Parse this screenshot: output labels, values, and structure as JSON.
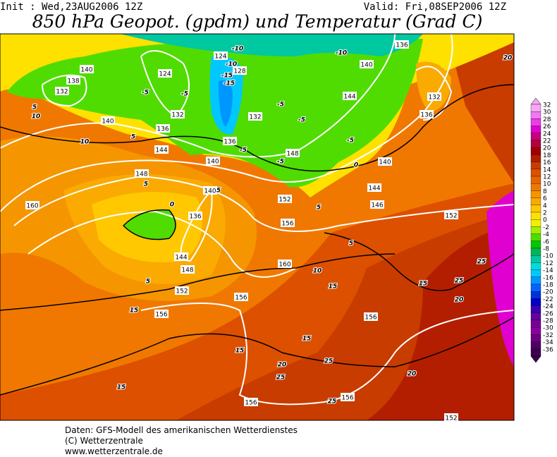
{
  "header": {
    "init": "Init : Wed,23AUG2006 12Z",
    "valid": "Valid: Fri,08SEP2006 12Z",
    "title": "850 hPa Geopot. (gpdm) und Temperatur (Grad C)"
  },
  "colorbar": {
    "ticks": [
      32,
      30,
      28,
      26,
      24,
      22,
      20,
      18,
      16,
      14,
      12,
      10,
      8,
      6,
      4,
      2,
      0,
      -2,
      -4,
      -6,
      -8,
      -10,
      -12,
      -14,
      -16,
      -18,
      -20,
      -22,
      -24,
      -26,
      -28,
      -30,
      -32,
      -34,
      -36
    ],
    "colors": [
      "#f6a6f6",
      "#f078f0",
      "#ec3cec",
      "#e000d0",
      "#c8007a",
      "#b4003c",
      "#a00000",
      "#b41e00",
      "#c83c00",
      "#dc5000",
      "#e66400",
      "#f07800",
      "#f59600",
      "#faaa00",
      "#ffc800",
      "#ffe100",
      "#f0f000",
      "#a0f000",
      "#50dc00",
      "#00c800",
      "#00b45a",
      "#00c8a0",
      "#00dcdc",
      "#00c8ff",
      "#0096ff",
      "#0064ff",
      "#0032dc",
      "#0000c8",
      "#3c00b4",
      "#6400a0",
      "#780096",
      "#8c00a0",
      "#6e0082",
      "#500064",
      "#3c0050"
    ]
  },
  "labels": {
    "geopotential": [
      "140",
      "138",
      "132",
      "140",
      "136",
      "144",
      "124",
      "124",
      "128",
      "132",
      "132",
      "136",
      "140",
      "148",
      "140",
      "136",
      "148",
      "160",
      "144",
      "148",
      "152",
      "156",
      "156",
      "152",
      "156",
      "160",
      "156",
      "156",
      "156",
      "152",
      "152",
      "146",
      "144",
      "140",
      "136",
      "132",
      "136",
      "140",
      "144"
    ],
    "temperature": [
      "-10",
      "-10",
      "-10",
      "-15",
      "-15",
      "-5",
      "-5",
      "-5",
      "-5",
      "-5",
      "-5",
      "-5",
      "0",
      "0",
      "5",
      "10",
      "10",
      "5",
      "5",
      "5",
      "5",
      "5",
      "5",
      "10",
      "15",
      "15",
      "15",
      "15",
      "15",
      "15",
      "20",
      "25",
      "25",
      "20",
      "25",
      "25",
      "25",
      "20",
      "20"
    ]
  },
  "footer": [
    "Daten: GFS-Modell des amerikanischen Wetterdienstes",
    "(C) Wetterzentrale",
    "www.wetterzentrale.de"
  ]
}
